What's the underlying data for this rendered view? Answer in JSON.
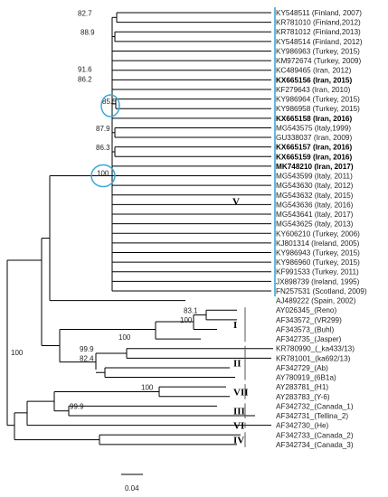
{
  "accent_color": "#3ba8d8",
  "leaves": [
    "KY548511 (Finland, 2007)",
    "KR781010 (Finland,2012)",
    "KR781012 (Finland,2013)",
    "KY548514 (Finland, 2012)",
    "KY986963 (Turkey, 2015)",
    "KM972674 (Turkey, 2009)",
    "KC489465 (Iran, 2012)",
    "KX665156 (Iran, 2015)",
    "KF279643 (Iran, 2010)",
    "KY986964 (Turkey, 2015)",
    "KY986958 (Turkey, 2015)",
    "KX665158 (Iran, 2016)",
    "MG543575 (Italy,1999)",
    "GU338037 (Iran, 2009)",
    "KX665157 (Iran, 2016)",
    "KX665159 (Iran, 2016)",
    "MK748210 (Iran, 2017)",
    "MG543599 (Italy, 2011)",
    "MG543630 (Italy, 2012)",
    "MG543632 (Italy, 2015)",
    "MG543636 (Italy, 2016)",
    "MG543641 (Italy, 2017)",
    "MG543625 (Italy, 2013)",
    "KY606210 (Turkey, 2006)",
    "KJ801314 (Ireland, 2005)",
    "KY986943 (Turkey, 2015)",
    "KY986960 (Turkey, 2015)",
    "KF991533 (Turkey, 2011)",
    "JX898739 (Ireland, 1995)",
    "FN257531 (Scotland, 2009)",
    "AJ489222 (Spain, 2002)",
    "AY026345_(Reno)",
    "AF343572_(VR299)",
    "AF343573_(Buhl)",
    "AF342735_(Jasper)",
    "KR780990_(_ka433/13)",
    "KR781001_(ka692/13)",
    "AF342729_(Ab)",
    "AY780919_(6B1a)",
    "AY283781_(H1)",
    "AY283783_(Y-6)",
    "AF342732_(Canada_1)",
    "AF342731_(Tellina_2)",
    "AF342730_(He)",
    "AF342733_(Canada_2)",
    "AF342734_(Canada_3)"
  ],
  "bold_leaves": [
    7,
    11,
    14,
    15,
    16
  ],
  "bootstrap": [
    {
      "value": "82.7",
      "row": 0.5
    },
    {
      "value": "88.9",
      "row": 2.5
    },
    {
      "value": "91.6",
      "row": 6
    },
    {
      "value": "86.2",
      "row": 7
    },
    {
      "value": "85.5",
      "row": 9.5
    },
    {
      "value": "87.9",
      "row": 12.5
    },
    {
      "value": "86.3",
      "row": 14.5
    },
    {
      "value": "100",
      "row": 17
    },
    {
      "value": "83.1",
      "row": 31.5
    },
    {
      "value": "100",
      "row": 32.5
    },
    {
      "value": "100",
      "row": 33.5
    },
    {
      "value": "99.9",
      "row": 35.5
    },
    {
      "value": "82.4",
      "row": 36.5
    },
    {
      "value": "100",
      "row": 35.5
    },
    {
      "value": "100",
      "row": 39.5
    },
    {
      "value": "99.9",
      "row": 41.5
    }
  ],
  "clades": [
    {
      "label": "V",
      "first": 0,
      "last": 29
    },
    {
      "label": "I",
      "first": 31,
      "last": 34
    },
    {
      "label": "II",
      "first": 35,
      "last": 38
    },
    {
      "label": "VII",
      "first": 39,
      "last": 40
    },
    {
      "label": "III",
      "first": 41,
      "last": 42
    },
    {
      "label": "VI",
      "first": 43,
      "last": 43
    },
    {
      "label": "IV",
      "first": 44,
      "last": 45
    }
  ],
  "circled_supports": [
    "85.5",
    "100"
  ],
  "scale_label": "0.04"
}
